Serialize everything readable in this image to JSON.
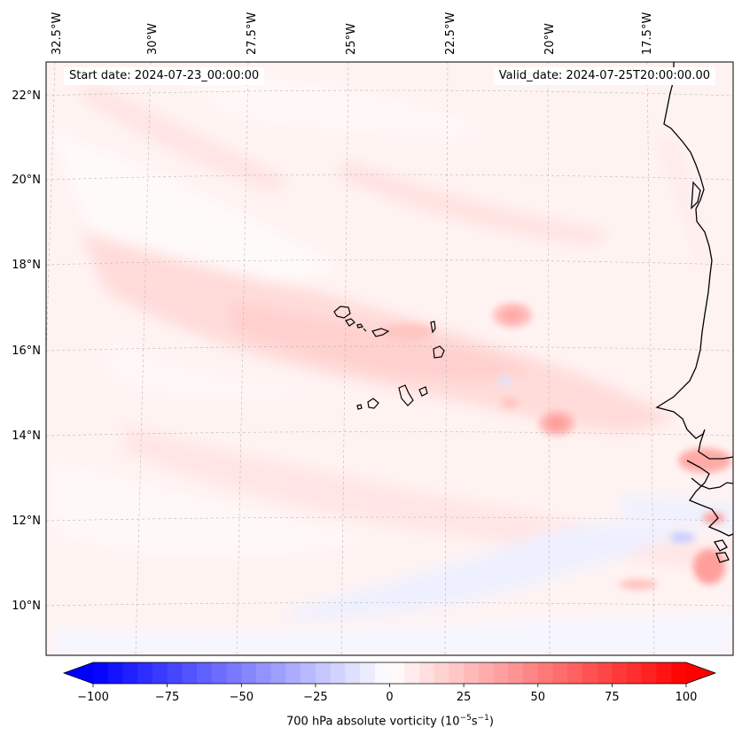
{
  "map": {
    "start_date": "Start date: 2024-07-23_00:00:00",
    "valid_date": "Valid_date: 2024-07-25T20:00:00.00",
    "lon_labels": [
      "32.5°W",
      "30°W",
      "27.5°W",
      "25°W",
      "22.5°W",
      "20°W",
      "17.5°W"
    ],
    "lat_labels": [
      "22°N",
      "20°N",
      "18°N",
      "16°N",
      "14°N",
      "12°N",
      "10°N"
    ],
    "field": "700 hPa absolute vorticity",
    "features": [
      "coastline-west-africa",
      "cape-verde-islands"
    ]
  },
  "colorbar": {
    "label_main": "700 hPa absolute vorticity (10",
    "label_exp1": "−5",
    "label_mid": "s",
    "label_exp2": "−1",
    "label_end": ")",
    "ticks": [
      "−100",
      "−75",
      "−50",
      "−25",
      "0",
      "25",
      "50",
      "75",
      "100"
    ],
    "min": -100,
    "max": 100,
    "colormap": "bwr",
    "low_color": "#0000ff",
    "mid_color": "#ffffff",
    "high_color": "#ff0000"
  }
}
